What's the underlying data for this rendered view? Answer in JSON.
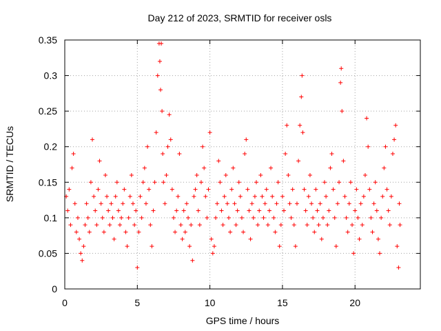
{
  "chart_data": {
    "type": "scatter",
    "title": "Day 212 of 2023, SRMTID for receiver osls",
    "xlabel": "GPS time / hours",
    "ylabel": "SRMTID / TECUs",
    "xlim": [
      0,
      24.5
    ],
    "ylim": [
      0,
      0.35
    ],
    "xticks": [
      0,
      5,
      10,
      15,
      20
    ],
    "xtick_labels": [
      "0",
      "5",
      "10",
      "15",
      "20"
    ],
    "yticks": [
      0,
      0.05,
      0.1,
      0.15,
      0.2,
      0.25,
      0.3,
      0.35
    ],
    "ytick_labels": [
      "0",
      "0.05",
      "0.1",
      "0.15",
      "0.2",
      "0.25",
      "0.3",
      "0.35"
    ],
    "grid": true,
    "marker": "+",
    "series_color": "#ff0000",
    "series": [
      {
        "name": "SRMTID",
        "points": [
          [
            0.1,
            0.13
          ],
          [
            0.2,
            0.11
          ],
          [
            0.3,
            0.14
          ],
          [
            0.4,
            0.09
          ],
          [
            0.5,
            0.17
          ],
          [
            0.6,
            0.19
          ],
          [
            0.7,
            0.12
          ],
          [
            0.8,
            0.08
          ],
          [
            0.9,
            0.1
          ],
          [
            1.0,
            0.07
          ],
          [
            1.1,
            0.05
          ],
          [
            1.2,
            0.04
          ],
          [
            1.3,
            0.06
          ],
          [
            1.4,
            0.09
          ],
          [
            1.5,
            0.12
          ],
          [
            1.6,
            0.1
          ],
          [
            1.7,
            0.08
          ],
          [
            1.8,
            0.15
          ],
          [
            1.9,
            0.21
          ],
          [
            2.0,
            0.13
          ],
          [
            2.1,
            0.11
          ],
          [
            2.2,
            0.09
          ],
          [
            2.3,
            0.14
          ],
          [
            2.4,
            0.18
          ],
          [
            2.5,
            0.12
          ],
          [
            2.6,
            0.1
          ],
          [
            2.7,
            0.08
          ],
          [
            2.8,
            0.16
          ],
          [
            2.9,
            0.13
          ],
          [
            3.0,
            0.11
          ],
          [
            3.1,
            0.09
          ],
          [
            3.2,
            0.12
          ],
          [
            3.3,
            0.1
          ],
          [
            3.4,
            0.07
          ],
          [
            3.5,
            0.13
          ],
          [
            3.6,
            0.15
          ],
          [
            3.7,
            0.11
          ],
          [
            3.8,
            0.09
          ],
          [
            3.9,
            0.1
          ],
          [
            4.0,
            0.12
          ],
          [
            4.1,
            0.14
          ],
          [
            4.2,
            0.08
          ],
          [
            4.3,
            0.06
          ],
          [
            4.4,
            0.1
          ],
          [
            4.5,
            0.13
          ],
          [
            4.6,
            0.16
          ],
          [
            4.7,
            0.12
          ],
          [
            4.8,
            0.09
          ],
          [
            4.9,
            0.11
          ],
          [
            5.0,
            0.03
          ],
          [
            5.1,
            0.08
          ],
          [
            5.2,
            0.13
          ],
          [
            5.3,
            0.1
          ],
          [
            5.4,
            0.15
          ],
          [
            5.5,
            0.17
          ],
          [
            5.6,
            0.12
          ],
          [
            5.7,
            0.2
          ],
          [
            5.8,
            0.14
          ],
          [
            5.9,
            0.09
          ],
          [
            6.0,
            0.06
          ],
          [
            6.1,
            0.11
          ],
          [
            6.2,
            0.15
          ],
          [
            6.3,
            0.22
          ],
          [
            6.4,
            0.3
          ],
          [
            6.5,
            0.345
          ],
          [
            6.55,
            0.32
          ],
          [
            6.6,
            0.28
          ],
          [
            6.65,
            0.345
          ],
          [
            6.7,
            0.25
          ],
          [
            6.75,
            0.19
          ],
          [
            6.8,
            0.15
          ],
          [
            6.9,
            0.12
          ],
          [
            7.0,
            0.16
          ],
          [
            7.1,
            0.2
          ],
          [
            7.2,
            0.245
          ],
          [
            7.3,
            0.21
          ],
          [
            7.4,
            0.14
          ],
          [
            7.5,
            0.1
          ],
          [
            7.6,
            0.08
          ],
          [
            7.7,
            0.11
          ],
          [
            7.8,
            0.13
          ],
          [
            7.9,
            0.19
          ],
          [
            8.0,
            0.09
          ],
          [
            8.1,
            0.07
          ],
          [
            8.2,
            0.11
          ],
          [
            8.3,
            0.08
          ],
          [
            8.4,
            0.12
          ],
          [
            8.5,
            0.1
          ],
          [
            8.6,
            0.06
          ],
          [
            8.7,
            0.09
          ],
          [
            8.8,
            0.04
          ],
          [
            8.9,
            0.13
          ],
          [
            9.0,
            0.14
          ],
          [
            9.1,
            0.16
          ],
          [
            9.2,
            0.11
          ],
          [
            9.3,
            0.09
          ],
          [
            9.4,
            0.15
          ],
          [
            9.5,
            0.2
          ],
          [
            9.6,
            0.17
          ],
          [
            9.7,
            0.13
          ],
          [
            9.8,
            0.1
          ],
          [
            9.9,
            0.14
          ],
          [
            10.0,
            0.22
          ],
          [
            10.1,
            0.07
          ],
          [
            10.2,
            0.05
          ],
          [
            10.3,
            0.06
          ],
          [
            10.4,
            0.1
          ],
          [
            10.5,
            0.12
          ],
          [
            10.6,
            0.18
          ],
          [
            10.7,
            0.15
          ],
          [
            10.8,
            0.11
          ],
          [
            10.9,
            0.09
          ],
          [
            11.0,
            0.13
          ],
          [
            11.1,
            0.16
          ],
          [
            11.2,
            0.12
          ],
          [
            11.3,
            0.1
          ],
          [
            11.4,
            0.08
          ],
          [
            11.5,
            0.14
          ],
          [
            11.6,
            0.17
          ],
          [
            11.7,
            0.12
          ],
          [
            11.8,
            0.09
          ],
          [
            11.9,
            0.11
          ],
          [
            12.0,
            0.15
          ],
          [
            12.1,
            0.13
          ],
          [
            12.2,
            0.1
          ],
          [
            12.3,
            0.08
          ],
          [
            12.4,
            0.19
          ],
          [
            12.5,
            0.21
          ],
          [
            12.6,
            0.14
          ],
          [
            12.7,
            0.11
          ],
          [
            12.8,
            0.07
          ],
          [
            12.9,
            0.12
          ],
          [
            13.0,
            0.1
          ],
          [
            13.1,
            0.13
          ],
          [
            13.2,
            0.15
          ],
          [
            13.3,
            0.09
          ],
          [
            13.4,
            0.11
          ],
          [
            13.5,
            0.16
          ],
          [
            13.6,
            0.13
          ],
          [
            13.7,
            0.1
          ],
          [
            13.8,
            0.12
          ],
          [
            13.9,
            0.14
          ],
          [
            14.0,
            0.09
          ],
          [
            14.1,
            0.11
          ],
          [
            14.2,
            0.17
          ],
          [
            14.3,
            0.13
          ],
          [
            14.4,
            0.1
          ],
          [
            14.5,
            0.08
          ],
          [
            14.6,
            0.12
          ],
          [
            14.7,
            0.15
          ],
          [
            14.8,
            0.06
          ],
          [
            14.9,
            0.09
          ],
          [
            15.0,
            0.13
          ],
          [
            15.1,
            0.11
          ],
          [
            15.2,
            0.19
          ],
          [
            15.3,
            0.23
          ],
          [
            15.4,
            0.16
          ],
          [
            15.5,
            0.12
          ],
          [
            15.6,
            0.1
          ],
          [
            15.7,
            0.14
          ],
          [
            15.8,
            0.09
          ],
          [
            15.9,
            0.06
          ],
          [
            16.0,
            0.12
          ],
          [
            16.1,
            0.18
          ],
          [
            16.2,
            0.23
          ],
          [
            16.3,
            0.27
          ],
          [
            16.35,
            0.3
          ],
          [
            16.4,
            0.22
          ],
          [
            16.5,
            0.14
          ],
          [
            16.6,
            0.11
          ],
          [
            16.7,
            0.09
          ],
          [
            16.8,
            0.13
          ],
          [
            16.9,
            0.16
          ],
          [
            17.0,
            0.12
          ],
          [
            17.1,
            0.1
          ],
          [
            17.2,
            0.08
          ],
          [
            17.3,
            0.14
          ],
          [
            17.4,
            0.11
          ],
          [
            17.5,
            0.09
          ],
          [
            17.6,
            0.12
          ],
          [
            17.7,
            0.07
          ],
          [
            17.8,
            0.1
          ],
          [
            17.9,
            0.15
          ],
          [
            18.0,
            0.13
          ],
          [
            18.1,
            0.09
          ],
          [
            18.2,
            0.11
          ],
          [
            18.3,
            0.17
          ],
          [
            18.4,
            0.19
          ],
          [
            18.5,
            0.14
          ],
          [
            18.6,
            0.1
          ],
          [
            18.7,
            0.06
          ],
          [
            18.8,
            0.12
          ],
          [
            18.9,
            0.15
          ],
          [
            19.0,
            0.29
          ],
          [
            19.05,
            0.31
          ],
          [
            19.1,
            0.25
          ],
          [
            19.2,
            0.18
          ],
          [
            19.3,
            0.13
          ],
          [
            19.4,
            0.1
          ],
          [
            19.5,
            0.08
          ],
          [
            19.6,
            0.12
          ],
          [
            19.7,
            0.15
          ],
          [
            19.8,
            0.09
          ],
          [
            19.9,
            0.05
          ],
          [
            20.0,
            0.11
          ],
          [
            20.1,
            0.14
          ],
          [
            20.2,
            0.1
          ],
          [
            20.3,
            0.07
          ],
          [
            20.4,
            0.12
          ],
          [
            20.5,
            0.09
          ],
          [
            20.6,
            0.13
          ],
          [
            20.7,
            0.16
          ],
          [
            20.8,
            0.24
          ],
          [
            20.9,
            0.2
          ],
          [
            21.0,
            0.14
          ],
          [
            21.1,
            0.1
          ],
          [
            21.2,
            0.08
          ],
          [
            21.3,
            0.12
          ],
          [
            21.4,
            0.15
          ],
          [
            21.5,
            0.11
          ],
          [
            21.6,
            0.07
          ],
          [
            21.7,
            0.05
          ],
          [
            21.8,
            0.1
          ],
          [
            21.9,
            0.13
          ],
          [
            22.0,
            0.17
          ],
          [
            22.1,
            0.2
          ],
          [
            22.2,
            0.14
          ],
          [
            22.3,
            0.11
          ],
          [
            22.4,
            0.09
          ],
          [
            22.5,
            0.13
          ],
          [
            22.6,
            0.19
          ],
          [
            22.7,
            0.21
          ],
          [
            22.8,
            0.23
          ],
          [
            22.9,
            0.06
          ],
          [
            23.0,
            0.03
          ],
          [
            23.05,
            0.12
          ],
          [
            23.1,
            0.09
          ]
        ]
      }
    ]
  }
}
